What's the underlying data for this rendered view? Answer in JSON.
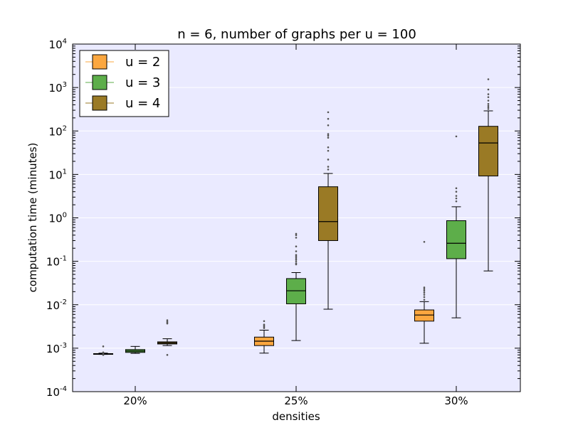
{
  "chart_data": {
    "type": "box",
    "title": "n = 6, number of graphs per u = 100",
    "xlabel": "densities",
    "ylabel": "computation time (minutes)",
    "yscale": "log",
    "ylim": [
      0.0001,
      10000
    ],
    "grid": "horizontal",
    "legend_position": "top-left",
    "y_ticks": [
      {
        "value": 0.0001,
        "base": "10",
        "exp": "-4"
      },
      {
        "value": 0.001,
        "base": "10",
        "exp": "-3"
      },
      {
        "value": 0.01,
        "base": "10",
        "exp": "-2"
      },
      {
        "value": 0.1,
        "base": "10",
        "exp": "-1"
      },
      {
        "value": 1,
        "base": "10",
        "exp": "0"
      },
      {
        "value": 10,
        "base": "10",
        "exp": "1"
      },
      {
        "value": 100,
        "base": "10",
        "exp": "2"
      },
      {
        "value": 1000,
        "base": "10",
        "exp": "3"
      },
      {
        "value": 10000,
        "base": "10",
        "exp": "4"
      }
    ],
    "categories": [
      "20%",
      "25%",
      "30%"
    ],
    "series": [
      {
        "name": "u = 2",
        "color": "#FBA73F",
        "boxes": [
          {
            "whislo": 0.00072,
            "q1": 0.00073,
            "med": 0.00074,
            "q3": 0.00075,
            "whishi": 0.00077,
            "fliers": [
              0.0007,
              0.00071,
              0.00076,
              0.00078,
              0.0008,
              0.0011
            ]
          },
          {
            "whislo": 0.00077,
            "q1": 0.00115,
            "med": 0.00145,
            "q3": 0.0018,
            "whishi": 0.0026,
            "fliers": [
              0.0029,
              0.0031,
              0.0033,
              0.0035,
              0.0042
            ]
          },
          {
            "whislo": 0.0013,
            "q1": 0.0042,
            "med": 0.0058,
            "q3": 0.0076,
            "whishi": 0.0118,
            "fliers": [
              0.013,
              0.015,
              0.017,
              0.019,
              0.021,
              0.023,
              0.025,
              0.28
            ]
          }
        ]
      },
      {
        "name": "u = 3",
        "color": "#5DAE4A",
        "boxes": [
          {
            "whislo": 0.00076,
            "q1": 0.0008,
            "med": 0.00086,
            "q3": 0.00093,
            "whishi": 0.0011,
            "fliers": []
          },
          {
            "whislo": 0.0015,
            "q1": 0.0105,
            "med": 0.021,
            "q3": 0.04,
            "whishi": 0.055,
            "fliers": [
              0.085,
              0.09,
              0.1,
              0.11,
              0.12,
              0.13,
              0.14,
              0.17,
              0.22,
              0.35,
              0.4,
              0.43
            ]
          },
          {
            "whislo": 0.005,
            "q1": 0.115,
            "med": 0.26,
            "q3": 0.86,
            "whishi": 1.8,
            "fliers": [
              2.4,
              2.8,
              3.2,
              4.0,
              4.8,
              75
            ]
          }
        ]
      },
      {
        "name": "u = 4",
        "color": "#9A7A25",
        "boxes": [
          {
            "whislo": 0.00115,
            "q1": 0.00125,
            "med": 0.00132,
            "q3": 0.0014,
            "whishi": 0.00165,
            "fliers": [
              0.0007,
              0.0037,
              0.0039,
              0.0041,
              0.0044
            ]
          },
          {
            "whislo": 0.0079,
            "q1": 0.3,
            "med": 0.82,
            "q3": 5.2,
            "whishi": 10.5,
            "fliers": [
              13,
              15,
              22,
              35,
              42,
              70,
              78,
              85,
              135,
              190,
              270
            ]
          },
          {
            "whislo": 0.06,
            "q1": 9.2,
            "med": 53,
            "q3": 128,
            "whishi": 290,
            "fliers": [
              320,
              350,
              380,
              420,
              500,
              600,
              700,
              900,
              1550
            ]
          }
        ]
      }
    ]
  }
}
